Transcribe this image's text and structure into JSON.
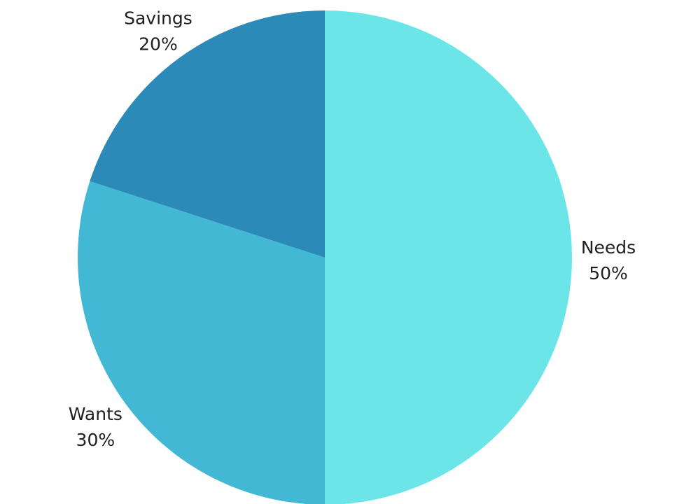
{
  "chart_data": {
    "type": "pie",
    "title": "",
    "slices": [
      {
        "label": "Needs",
        "percent_label": "50%",
        "value": 50,
        "color": "#6BE5E8"
      },
      {
        "label": "Wants",
        "percent_label": "30%",
        "value": 30,
        "color": "#42B8D5"
      },
      {
        "label": "Savings",
        "percent_label": "20%",
        "value": 20,
        "color": "#2C8AB8"
      }
    ],
    "start_angle_deg": 0,
    "direction": "clockwise",
    "legend": "none"
  }
}
